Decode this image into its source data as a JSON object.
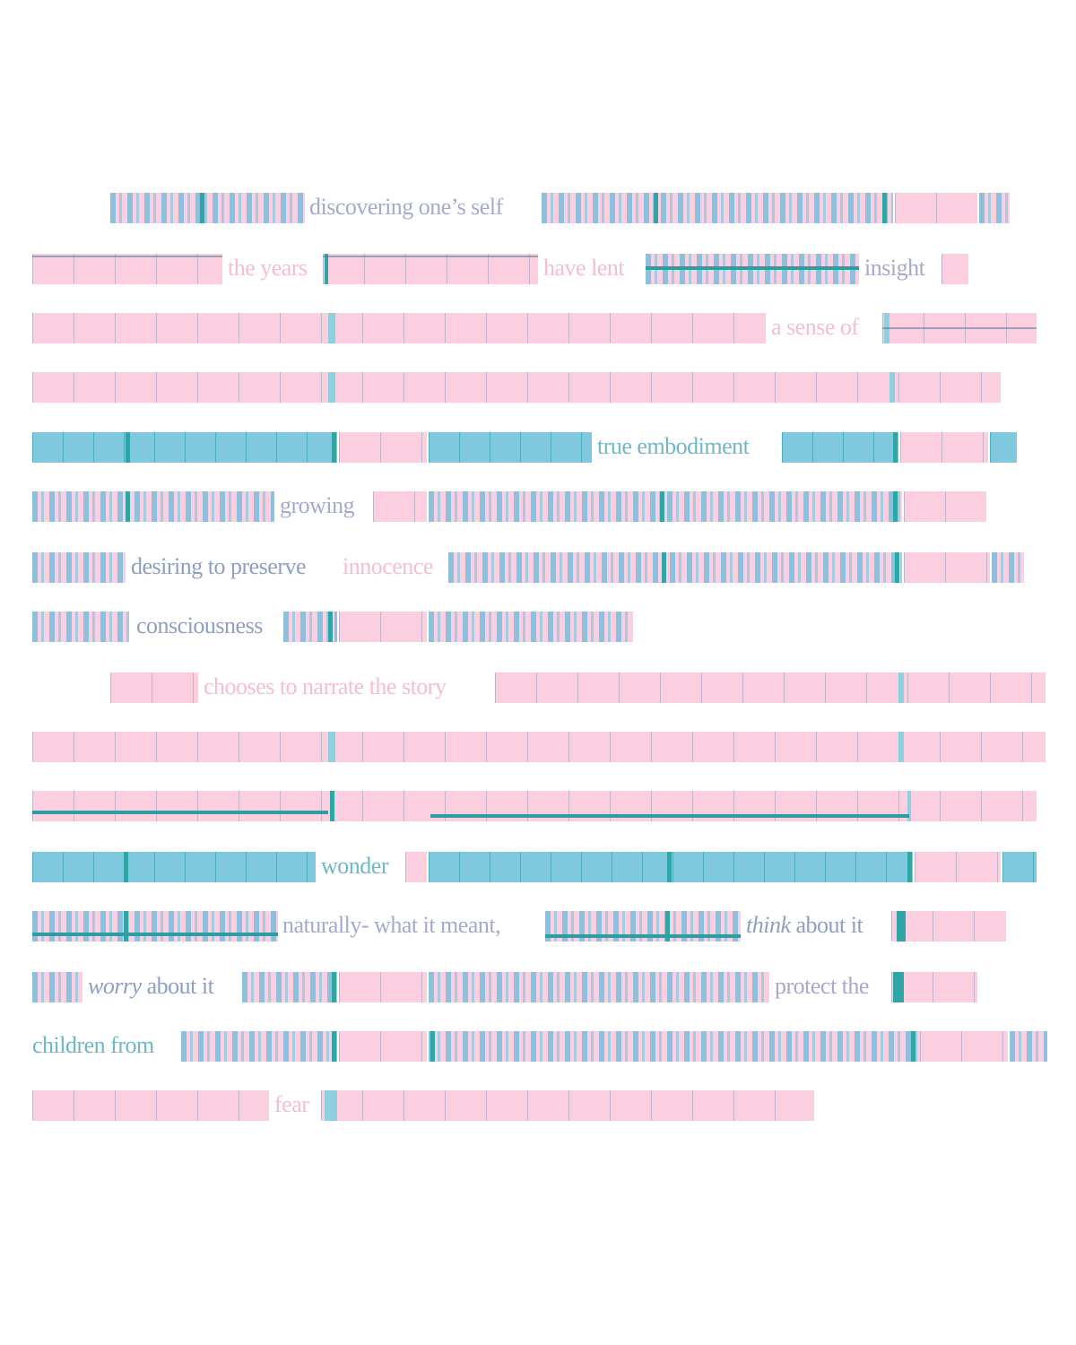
{
  "palette": {
    "pink": "#fbcfe0",
    "blue": "#7ec9de",
    "teal": "#2fa5a6",
    "text_blue": "#6fb6c9",
    "text_pink": "#f4bdd4",
    "text_lavender": "#a6a9cc",
    "background": "#ffffff"
  },
  "poem": {
    "line1": {
      "phrase1": "discovering one’s self"
    },
    "line2": {
      "phrase1": "the years",
      "phrase2": "have lent",
      "phrase3": "insight"
    },
    "line3": {
      "phrase1": "a sense of"
    },
    "line5": {
      "phrase1": "true embodiment"
    },
    "line6": {
      "phrase1": "growing"
    },
    "line7": {
      "phrase1": "desiring to preserve",
      "phrase2": "innocence"
    },
    "line8": {
      "phrase1": "consciousness"
    },
    "line9": {
      "phrase1": "chooses to narrate the story"
    },
    "line12": {
      "phrase1": "wonder"
    },
    "line13": {
      "phrase1": "naturally- what it meant,",
      "phrase2_em": "think",
      "phrase2_rest": " about it"
    },
    "line14": {
      "phrase1_em": "worry",
      "phrase1_rest": " about it",
      "phrase2": "protect the"
    },
    "line15": {
      "phrase1": "children from"
    },
    "line16": {
      "phrase1": "fear"
    }
  }
}
